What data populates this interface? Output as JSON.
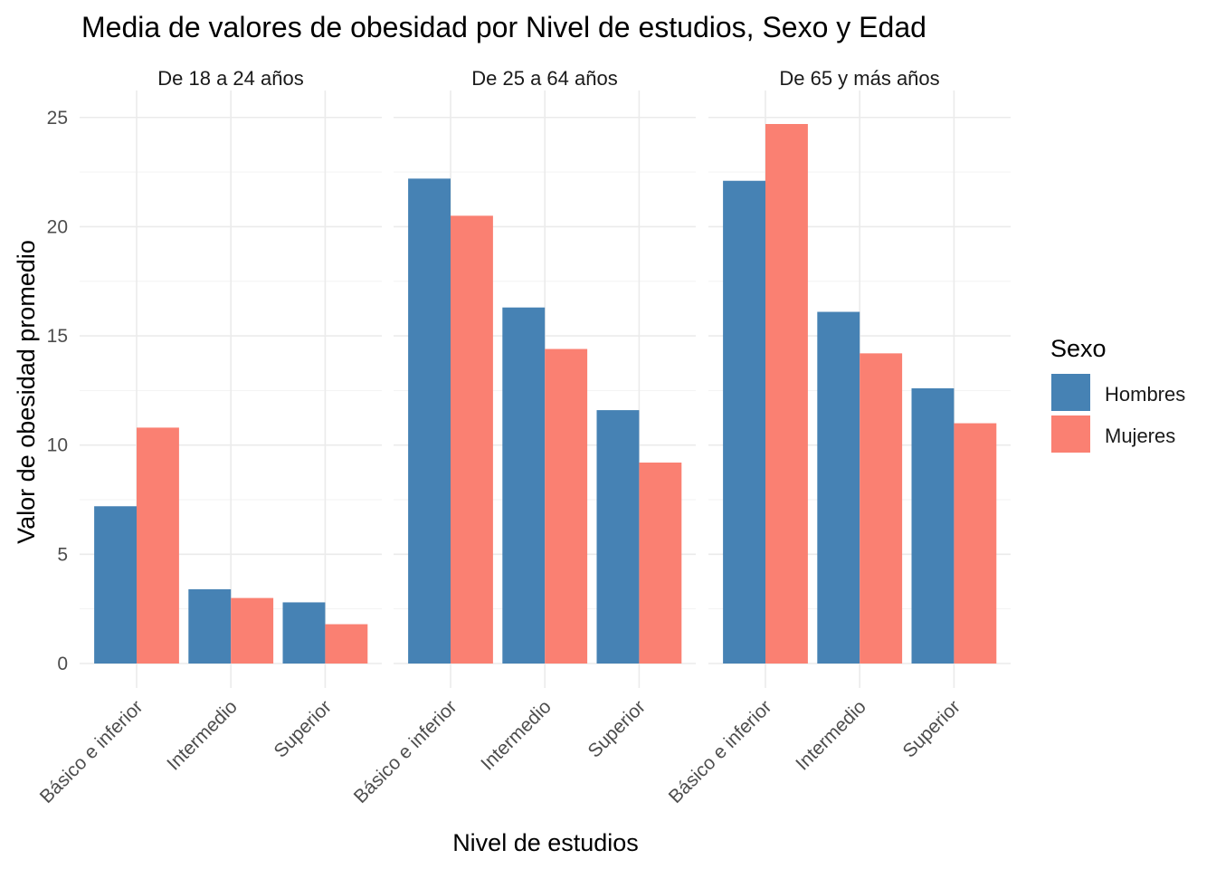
{
  "chart_data": {
    "type": "bar",
    "title": "Media de valores de obesidad por Nivel de estudios, Sexo y Edad",
    "xlabel": "Nivel de estudios",
    "ylabel": "Valor de obesidad promedio",
    "ylim": [
      0,
      25
    ],
    "yticks": [
      "0",
      "5",
      "10",
      "15",
      "20",
      "25"
    ],
    "categories": [
      "Básico e inferior",
      "Intermedio",
      "Superior"
    ],
    "legend": {
      "title": "Sexo",
      "position": "right",
      "items": [
        {
          "label": "Hombres",
          "color": "#4682b4"
        },
        {
          "label": "Mujeres",
          "color": "#fa8072"
        }
      ]
    },
    "grid": true,
    "facets": [
      {
        "label": "De 18 a 24 años",
        "series": [
          {
            "name": "Hombres",
            "values": [
              7.2,
              3.4,
              2.8
            ]
          },
          {
            "name": "Mujeres",
            "values": [
              10.8,
              3.0,
              1.8
            ]
          }
        ]
      },
      {
        "label": "De 25 a 64 años",
        "series": [
          {
            "name": "Hombres",
            "values": [
              22.2,
              16.3,
              11.6
            ]
          },
          {
            "name": "Mujeres",
            "values": [
              20.5,
              14.4,
              9.2
            ]
          }
        ]
      },
      {
        "label": "De 65 y más años",
        "series": [
          {
            "name": "Hombres",
            "values": [
              22.1,
              16.1,
              12.6
            ]
          },
          {
            "name": "Mujeres",
            "values": [
              24.7,
              14.2,
              11.0
            ]
          }
        ]
      }
    ]
  }
}
